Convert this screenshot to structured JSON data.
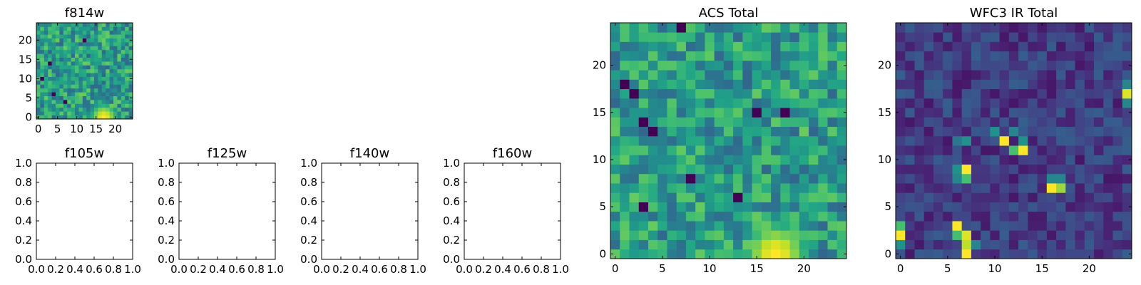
{
  "chart_data": [
    {
      "type": "heatmap",
      "title": "f814w",
      "xlabel": "",
      "ylabel": "",
      "grid": false,
      "colormap": "viridis",
      "xlim": [
        -0.5,
        24.5
      ],
      "ylim": [
        -0.5,
        24.5
      ],
      "xticks": [
        0,
        5,
        10,
        15,
        20
      ],
      "yticks": [
        0,
        5,
        10,
        15,
        20
      ],
      "xtick_labels": [
        "0",
        "5",
        "10",
        "15",
        "20"
      ],
      "ytick_labels": [
        "0",
        "5",
        "10",
        "15",
        "20"
      ],
      "grid_shape": [
        25,
        25
      ],
      "base_level": 0.55,
      "noise_amplitude": 0.22,
      "bright_region": {
        "x": 17,
        "y": 0,
        "sigma": 3.2,
        "peak": 1.0
      },
      "dark_pixels": [
        [
          3,
          14
        ],
        [
          1,
          10
        ],
        [
          4,
          6
        ],
        [
          12,
          20
        ],
        [
          7,
          4
        ]
      ]
    },
    {
      "type": "heatmap",
      "title": "f105w",
      "xlabel": "",
      "ylabel": "",
      "empty": true,
      "xlim": [
        0,
        1
      ],
      "ylim": [
        0,
        1
      ],
      "xticks": [
        0,
        0.2,
        0.4,
        0.6,
        0.8,
        1.0
      ],
      "yticks": [
        0,
        0.2,
        0.4,
        0.6,
        0.8,
        1.0
      ],
      "xtick_labels": [
        "0.0",
        "0.2",
        "0.4",
        "0.6",
        "0.8",
        "1.0"
      ],
      "ytick_labels": [
        "0.0",
        "0.2",
        "0.4",
        "0.6",
        "0.8",
        "1.0"
      ]
    },
    {
      "type": "heatmap",
      "title": "f125w",
      "xlabel": "",
      "ylabel": "",
      "empty": true,
      "xlim": [
        0,
        1
      ],
      "ylim": [
        0,
        1
      ],
      "xticks": [
        0,
        0.2,
        0.4,
        0.6,
        0.8,
        1.0
      ],
      "yticks": [
        0,
        0.2,
        0.4,
        0.6,
        0.8,
        1.0
      ],
      "xtick_labels": [
        "0.0",
        "0.2",
        "0.4",
        "0.6",
        "0.8",
        "1.0"
      ],
      "ytick_labels": [
        "0.0",
        "0.2",
        "0.4",
        "0.6",
        "0.8",
        "1.0"
      ]
    },
    {
      "type": "heatmap",
      "title": "f140w",
      "xlabel": "",
      "ylabel": "",
      "empty": true,
      "xlim": [
        0,
        1
      ],
      "ylim": [
        0,
        1
      ],
      "xticks": [
        0,
        0.2,
        0.4,
        0.6,
        0.8,
        1.0
      ],
      "yticks": [
        0,
        0.2,
        0.4,
        0.6,
        0.8,
        1.0
      ],
      "xtick_labels": [
        "0.0",
        "0.2",
        "0.4",
        "0.6",
        "0.8",
        "1.0"
      ],
      "ytick_labels": [
        "0.0",
        "0.2",
        "0.4",
        "0.6",
        "0.8",
        "1.0"
      ]
    },
    {
      "type": "heatmap",
      "title": "f160w",
      "xlabel": "",
      "ylabel": "",
      "empty": true,
      "xlim": [
        0,
        1
      ],
      "ylim": [
        0,
        1
      ],
      "xticks": [
        0,
        0.2,
        0.4,
        0.6,
        0.8,
        1.0
      ],
      "yticks": [
        0,
        0.2,
        0.4,
        0.6,
        0.8,
        1.0
      ],
      "xtick_labels": [
        "0.0",
        "0.2",
        "0.4",
        "0.6",
        "0.8",
        "1.0"
      ],
      "ytick_labels": [
        "0.0",
        "0.2",
        "0.4",
        "0.6",
        "0.8",
        "1.0"
      ]
    },
    {
      "type": "heatmap",
      "title": "ACS Total",
      "xlabel": "",
      "ylabel": "",
      "grid": false,
      "colormap": "viridis",
      "xlim": [
        -0.5,
        24.5
      ],
      "ylim": [
        -0.5,
        24.5
      ],
      "xticks": [
        0,
        5,
        10,
        15,
        20
      ],
      "yticks": [
        0,
        5,
        10,
        15,
        20
      ],
      "xtick_labels": [
        "0",
        "5",
        "10",
        "15",
        "20"
      ],
      "ytick_labels": [
        "0",
        "5",
        "10",
        "15",
        "20"
      ],
      "grid_shape": [
        25,
        25
      ],
      "base_level": 0.55,
      "noise_amplitude": 0.22,
      "bright_region": {
        "x": 17,
        "y": 0,
        "sigma": 3.2,
        "peak": 1.0
      },
      "dark_pixels": [
        [
          3,
          14
        ],
        [
          4,
          13
        ],
        [
          18,
          15
        ],
        [
          8,
          8
        ],
        [
          13,
          6
        ],
        [
          3,
          5
        ],
        [
          15,
          15
        ],
        [
          1,
          18
        ],
        [
          7,
          24
        ],
        [
          2,
          17
        ]
      ]
    },
    {
      "type": "heatmap",
      "title": "WFC3 IR Total",
      "xlabel": "",
      "ylabel": "",
      "grid": false,
      "colormap": "viridis",
      "xlim": [
        -0.5,
        24.5
      ],
      "ylim": [
        -0.5,
        24.5
      ],
      "xticks": [
        0,
        5,
        10,
        15,
        20
      ],
      "yticks": [
        0,
        5,
        10,
        15,
        20
      ],
      "xtick_labels": [
        "0",
        "5",
        "10",
        "15",
        "20"
      ],
      "ytick_labels": [
        "0",
        "5",
        "10",
        "15",
        "20"
      ],
      "grid_shape": [
        25,
        25
      ],
      "base_level": 0.18,
      "noise_amplitude": 0.12,
      "bright_pixels": [
        [
          11,
          12,
          1.0
        ],
        [
          10,
          13,
          0.5
        ],
        [
          12,
          13,
          0.45
        ],
        [
          13,
          11,
          1.0
        ],
        [
          12,
          11,
          0.7
        ],
        [
          13,
          12,
          0.5
        ],
        [
          7,
          9,
          1.0
        ],
        [
          6,
          9,
          0.5
        ],
        [
          6,
          8,
          0.45
        ],
        [
          7,
          8,
          0.7
        ],
        [
          16,
          7,
          1.0
        ],
        [
          17,
          7,
          0.85
        ],
        [
          16,
          8,
          0.45
        ],
        [
          17,
          8,
          0.45
        ],
        [
          0,
          2,
          1.0
        ],
        [
          0,
          1,
          0.5
        ],
        [
          0,
          3,
          0.7
        ],
        [
          6,
          3,
          1.0
        ],
        [
          6,
          2,
          0.7
        ],
        [
          7,
          2,
          0.95
        ],
        [
          7,
          1,
          0.9
        ],
        [
          7,
          0,
          1.0
        ],
        [
          8,
          1,
          0.45
        ],
        [
          6,
          12,
          0.4
        ],
        [
          7,
          12,
          0.5
        ],
        [
          24,
          17,
          0.95
        ],
        [
          24,
          16,
          0.45
        ],
        [
          24,
          18,
          0.45
        ]
      ]
    }
  ]
}
